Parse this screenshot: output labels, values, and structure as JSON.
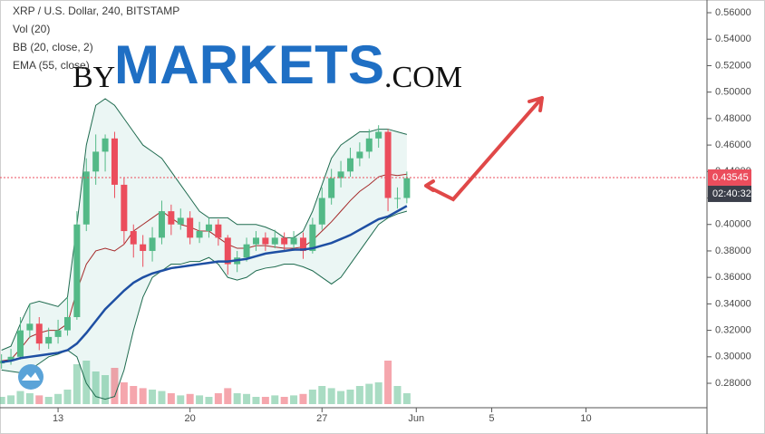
{
  "chart_data": {
    "type": "candlestick",
    "title": "XRP / U.S. Dollar, 240, BITSTAMP",
    "volume_label": "Vol (20)",
    "watermark": {
      "by": "BY",
      "brand": "MARKETS",
      "suffix": ".COM"
    },
    "x": [
      10,
      10.5,
      11,
      11.5,
      12,
      12.5,
      13,
      13.5,
      14,
      14.5,
      15,
      15.5,
      16,
      16.5,
      17,
      17.5,
      18,
      18.5,
      19,
      19.5,
      20,
      20.5,
      21,
      21.5,
      22,
      22.5,
      23,
      23.5,
      24,
      24.5,
      25,
      25.5,
      26,
      26.5,
      27,
      27.5,
      28,
      28.5,
      29,
      29.5,
      30,
      30.5,
      31,
      31.5
    ],
    "open": [
      0.295,
      0.297,
      0.3,
      0.32,
      0.325,
      0.31,
      0.315,
      0.32,
      0.33,
      0.4,
      0.44,
      0.455,
      0.465,
      0.43,
      0.395,
      0.385,
      0.38,
      0.39,
      0.41,
      0.4,
      0.405,
      0.39,
      0.395,
      0.4,
      0.39,
      0.37,
      0.375,
      0.385,
      0.39,
      0.385,
      0.39,
      0.385,
      0.39,
      0.38,
      0.4,
      0.42,
      0.435,
      0.44,
      0.45,
      0.455,
      0.465,
      0.47,
      0.42,
      0.42
    ],
    "high": [
      0.302,
      0.306,
      0.33,
      0.34,
      0.33,
      0.322,
      0.328,
      0.345,
      0.41,
      0.45,
      0.468,
      0.468,
      0.47,
      0.435,
      0.4,
      0.392,
      0.398,
      0.418,
      0.415,
      0.412,
      0.41,
      0.402,
      0.405,
      0.404,
      0.392,
      0.38,
      0.39,
      0.395,
      0.394,
      0.396,
      0.394,
      0.395,
      0.394,
      0.405,
      0.428,
      0.442,
      0.448,
      0.458,
      0.462,
      0.472,
      0.475,
      0.472,
      0.428,
      0.44
    ],
    "low": [
      0.291,
      0.294,
      0.298,
      0.314,
      0.305,
      0.306,
      0.31,
      0.316,
      0.328,
      0.395,
      0.43,
      0.44,
      0.42,
      0.385,
      0.375,
      0.368,
      0.372,
      0.385,
      0.392,
      0.396,
      0.385,
      0.386,
      0.39,
      0.384,
      0.362,
      0.364,
      0.372,
      0.38,
      0.38,
      0.382,
      0.38,
      0.38,
      0.374,
      0.378,
      0.396,
      0.415,
      0.428,
      0.436,
      0.444,
      0.45,
      0.458,
      0.41,
      0.412,
      0.416
    ],
    "close": [
      0.297,
      0.3,
      0.32,
      0.325,
      0.31,
      0.315,
      0.32,
      0.33,
      0.4,
      0.44,
      0.455,
      0.465,
      0.43,
      0.395,
      0.385,
      0.38,
      0.39,
      0.41,
      0.4,
      0.405,
      0.39,
      0.395,
      0.4,
      0.39,
      0.37,
      0.375,
      0.385,
      0.39,
      0.385,
      0.39,
      0.385,
      0.39,
      0.38,
      0.4,
      0.42,
      0.435,
      0.44,
      0.45,
      0.455,
      0.465,
      0.47,
      0.42,
      0.42,
      0.435
    ],
    "volume": [
      10,
      12,
      18,
      15,
      12,
      10,
      14,
      20,
      55,
      60,
      45,
      40,
      50,
      30,
      25,
      22,
      20,
      18,
      15,
      12,
      14,
      12,
      10,
      15,
      22,
      15,
      14,
      10,
      10,
      12,
      10,
      12,
      14,
      20,
      25,
      22,
      18,
      20,
      25,
      28,
      30,
      60,
      25,
      15
    ],
    "up_color": "#53b987",
    "down_color": "#eb4d5c",
    "bollinger": {
      "label": "BB (20, close, 2)",
      "color": "#1f6b4f",
      "basis_color": "#a52a2a",
      "fill": "#e6f4f1",
      "upper": [
        0.305,
        0.308,
        0.325,
        0.34,
        0.342,
        0.34,
        0.338,
        0.345,
        0.4,
        0.46,
        0.49,
        0.495,
        0.49,
        0.48,
        0.47,
        0.46,
        0.455,
        0.45,
        0.44,
        0.43,
        0.42,
        0.41,
        0.405,
        0.405,
        0.405,
        0.4,
        0.4,
        0.4,
        0.398,
        0.395,
        0.39,
        0.39,
        0.395,
        0.41,
        0.43,
        0.45,
        0.46,
        0.465,
        0.47,
        0.47,
        0.472,
        0.472,
        0.47,
        0.468
      ],
      "basis": [
        0.297,
        0.298,
        0.306,
        0.315,
        0.318,
        0.32,
        0.32,
        0.325,
        0.35,
        0.37,
        0.38,
        0.382,
        0.38,
        0.385,
        0.395,
        0.4,
        0.405,
        0.41,
        0.405,
        0.4,
        0.398,
        0.395,
        0.395,
        0.39,
        0.385,
        0.382,
        0.382,
        0.384,
        0.384,
        0.383,
        0.382,
        0.382,
        0.383,
        0.388,
        0.395,
        0.402,
        0.41,
        0.418,
        0.425,
        0.43,
        0.436,
        0.438,
        0.437,
        0.438
      ],
      "lower": [
        0.29,
        0.289,
        0.288,
        0.29,
        0.295,
        0.3,
        0.302,
        0.305,
        0.3,
        0.28,
        0.27,
        0.268,
        0.27,
        0.29,
        0.32,
        0.345,
        0.36,
        0.365,
        0.37,
        0.37,
        0.372,
        0.372,
        0.375,
        0.37,
        0.36,
        0.358,
        0.36,
        0.365,
        0.367,
        0.368,
        0.37,
        0.37,
        0.368,
        0.365,
        0.36,
        0.355,
        0.36,
        0.37,
        0.38,
        0.39,
        0.4,
        0.405,
        0.408,
        0.41
      ]
    },
    "ema": {
      "label": "EMA (55, close)",
      "color": "#1e4fa3",
      "values": [
        0.296,
        0.297,
        0.299,
        0.3,
        0.301,
        0.302,
        0.303,
        0.305,
        0.31,
        0.318,
        0.327,
        0.336,
        0.343,
        0.35,
        0.356,
        0.36,
        0.363,
        0.365,
        0.367,
        0.368,
        0.369,
        0.37,
        0.371,
        0.372,
        0.372,
        0.373,
        0.374,
        0.376,
        0.378,
        0.379,
        0.38,
        0.381,
        0.381,
        0.382,
        0.384,
        0.386,
        0.389,
        0.392,
        0.396,
        0.4,
        0.404,
        0.406,
        0.41,
        0.414
      ]
    },
    "last_price": 0.43545,
    "countdown": "02:40:32",
    "xlim": [
      9.92,
      47.42
    ],
    "xticks": [
      13,
      20,
      27,
      {
        "value": 32,
        "label": "Jun"
      },
      {
        "value": 36,
        "label": "5"
      },
      {
        "value": 41,
        "label": "10"
      }
    ],
    "ylim": [
      0.2629,
      0.5696
    ],
    "yticks": [
      {
        "value": 0.28,
        "label": "0.28000"
      },
      {
        "value": 0.3,
        "label": "0.30000"
      },
      {
        "value": 0.32,
        "label": "0.32000"
      },
      {
        "value": 0.34,
        "label": "0.34000"
      },
      {
        "value": 0.36,
        "label": "0.36000"
      },
      {
        "value": 0.38,
        "label": "0.38000"
      },
      {
        "value": 0.4,
        "label": "0.40000"
      },
      {
        "value": 0.42,
        "label": "0.42000"
      },
      {
        "value": 0.44,
        "label": "0.44000"
      },
      {
        "value": 0.46,
        "label": "0.46000"
      },
      {
        "value": 0.48,
        "label": "0.48000"
      },
      {
        "value": 0.5,
        "label": "0.50000"
      },
      {
        "value": 0.52,
        "label": "0.52000"
      },
      {
        "value": 0.54,
        "label": "0.54000"
      },
      {
        "value": 0.56,
        "label": "0.56000"
      }
    ]
  }
}
